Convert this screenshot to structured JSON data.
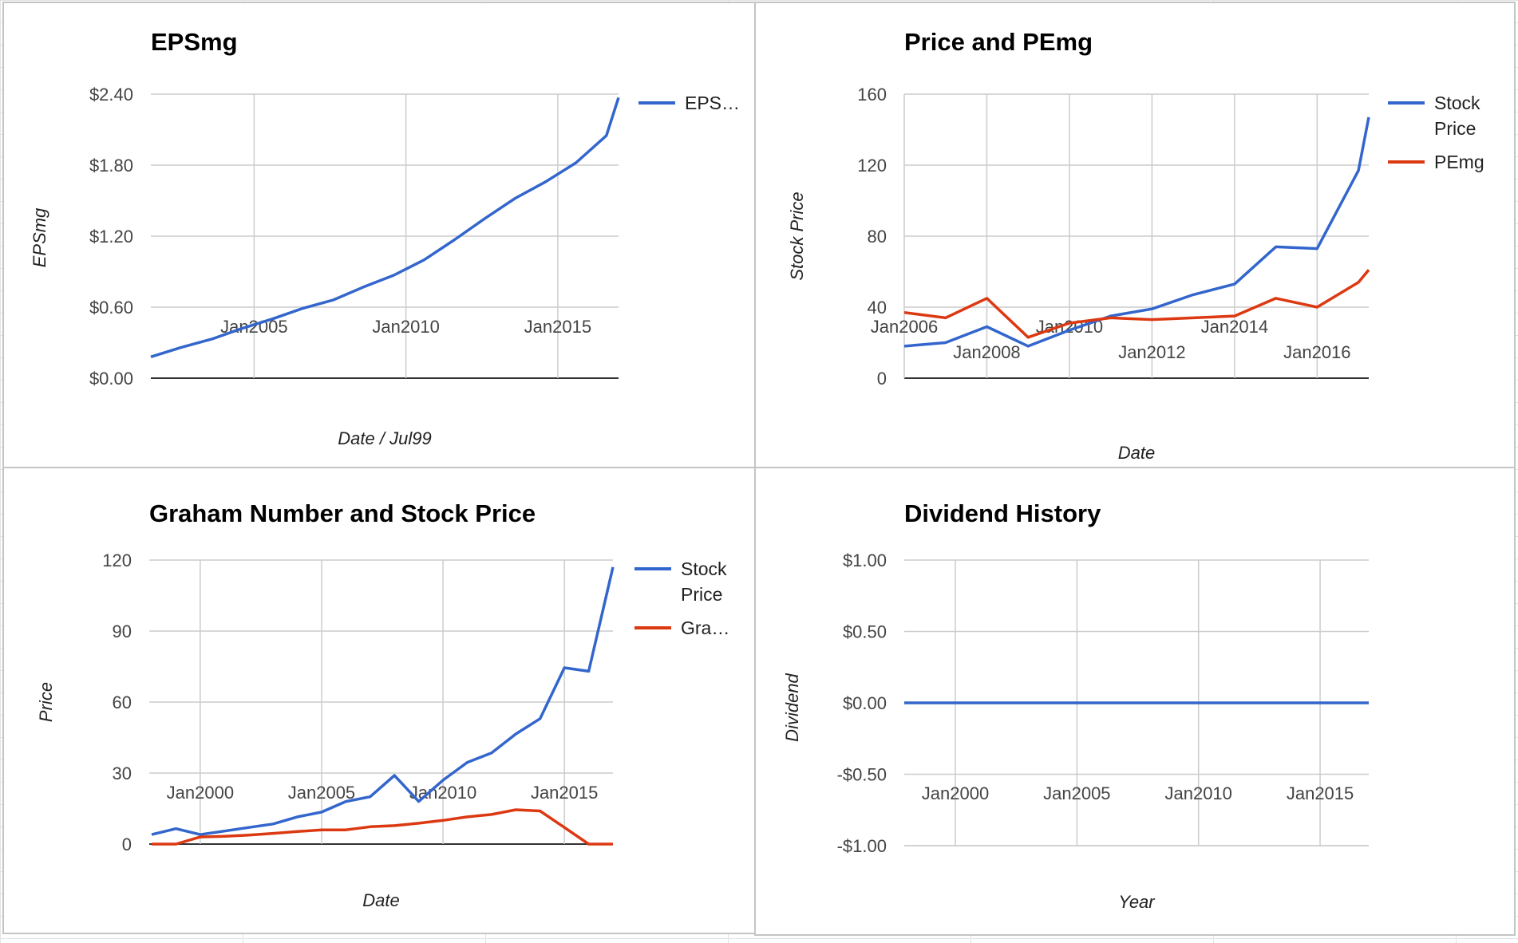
{
  "colors": {
    "blue": "#3366cc",
    "red": "#dc3912",
    "grid": "#cccccc",
    "baseline": "#333333"
  },
  "chart_data": [
    {
      "type": "line",
      "title": "EPSmg",
      "xlabel": "Date / Jul99",
      "ylabel": "EPSmg",
      "xlim": [
        2001.6,
        2017.0
      ],
      "ylim": [
        0,
        2.4
      ],
      "y_ticks": [
        0,
        0.6,
        1.2,
        1.8,
        2.4
      ],
      "y_tick_labels": [
        "$0.00",
        "$0.60",
        "$1.20",
        "$1.80",
        "$2.40"
      ],
      "x_ticks": [
        2005,
        2010,
        2015
      ],
      "x_tick_labels": [
        "Jan2005",
        "Jan2010",
        "Jan2015"
      ],
      "legend": "right",
      "series": [
        {
          "name": "EPS…",
          "color": "blue",
          "x": [
            2001.6,
            2002.6,
            2003.6,
            2004.6,
            2005.6,
            2006.6,
            2007.6,
            2008.6,
            2009.6,
            2010.6,
            2011.6,
            2012.6,
            2013.6,
            2014.6,
            2015.6,
            2016.6,
            2017.0
          ],
          "y": [
            0.18,
            0.26,
            0.33,
            0.42,
            0.5,
            0.59,
            0.66,
            0.77,
            0.87,
            1.0,
            1.17,
            1.35,
            1.52,
            1.66,
            1.82,
            2.05,
            2.37
          ]
        }
      ]
    },
    {
      "type": "line",
      "title": "Price and PEmg",
      "xlabel": "Date",
      "ylabel": "Stock Price",
      "xlim": [
        2006.0,
        2017.25
      ],
      "ylim": [
        0,
        160
      ],
      "y_ticks": [
        0,
        40,
        80,
        120,
        160
      ],
      "y_tick_labels": [
        "0",
        "40",
        "80",
        "120",
        "160"
      ],
      "x_ticks": [
        2006,
        2008,
        2010,
        2012,
        2014,
        2016
      ],
      "x_tick_labels": [
        "Jan2006",
        "Jan2008",
        "Jan2010",
        "Jan2012",
        "Jan2014",
        "Jan2016"
      ],
      "legend": "right",
      "series": [
        {
          "name": "Stock Price",
          "color": "blue",
          "x": [
            2006.0,
            2007.0,
            2008.0,
            2009.0,
            2010.0,
            2011.0,
            2012.0,
            2013.0,
            2014.0,
            2015.0,
            2016.0,
            2017.0,
            2017.25
          ],
          "y": [
            18,
            20,
            29,
            18,
            27,
            35,
            39,
            47,
            53,
            74,
            73,
            117,
            147
          ]
        },
        {
          "name": "PEmg",
          "color": "red",
          "x": [
            2006.0,
            2007.0,
            2008.0,
            2009.0,
            2010.0,
            2011.0,
            2012.0,
            2013.0,
            2014.0,
            2015.0,
            2016.0,
            2017.0,
            2017.25
          ],
          "y": [
            37,
            34,
            45,
            23,
            31,
            34,
            33,
            34,
            35,
            45,
            40,
            54,
            61
          ]
        }
      ]
    },
    {
      "type": "line",
      "title": "Graham Number and Stock Price",
      "xlabel": "Date",
      "ylabel": "Price",
      "xlim": [
        1997.9,
        2017.0
      ],
      "ylim": [
        0,
        120
      ],
      "y_ticks": [
        0,
        30,
        60,
        90,
        120
      ],
      "y_tick_labels": [
        "0",
        "30",
        "60",
        "90",
        "120"
      ],
      "x_ticks": [
        2000,
        2005,
        2010,
        2015
      ],
      "x_tick_labels": [
        "Jan2000",
        "Jan2005",
        "Jan2010",
        "Jan2015"
      ],
      "legend": "right",
      "series": [
        {
          "name": "Stock Price",
          "color": "blue",
          "x": [
            1998,
            1999,
            2000,
            2001,
            2002,
            2003,
            2004,
            2005,
            2006,
            2007,
            2008,
            2009,
            2010,
            2011,
            2012,
            2013,
            2014,
            2015,
            2016,
            2017
          ],
          "y": [
            4,
            6.5,
            4,
            5.5,
            7,
            8.5,
            11.5,
            13.5,
            18,
            20,
            29,
            18,
            27,
            34.5,
            38.5,
            46.5,
            53,
            74.5,
            73,
            117
          ]
        },
        {
          "name": "Gra…",
          "color": "red",
          "x": [
            1998,
            1999,
            2000,
            2001,
            2002,
            2003,
            2004,
            2005,
            2006,
            2007,
            2008,
            2009,
            2010,
            2011,
            2012,
            2013,
            2014,
            2015,
            2016,
            2017
          ],
          "y": [
            0,
            0,
            3,
            3.3,
            3.8,
            4.5,
            5.3,
            6,
            6,
            7.3,
            7.8,
            8.8,
            10,
            11.5,
            12.5,
            14.5,
            14,
            7,
            0,
            0
          ]
        }
      ]
    },
    {
      "type": "line",
      "title": "Dividend History",
      "xlabel": "Year",
      "ylabel": "Dividend",
      "xlim": [
        1997.9,
        2017.0
      ],
      "ylim": [
        -1,
        1
      ],
      "y_ticks": [
        -1,
        -0.5,
        0,
        0.5,
        1
      ],
      "y_tick_labels": [
        "-$1.00",
        "-$0.50",
        "$0.00",
        "$0.50",
        "$1.00"
      ],
      "x_ticks": [
        2000,
        2005,
        2010,
        2015
      ],
      "x_tick_labels": [
        "Jan2000",
        "Jan2005",
        "Jan2010",
        "Jan2015"
      ],
      "legend": "none",
      "series": [
        {
          "color": "blue",
          "x": [
            1997.9,
            2017.0
          ],
          "y": [
            0,
            0
          ]
        }
      ]
    }
  ]
}
